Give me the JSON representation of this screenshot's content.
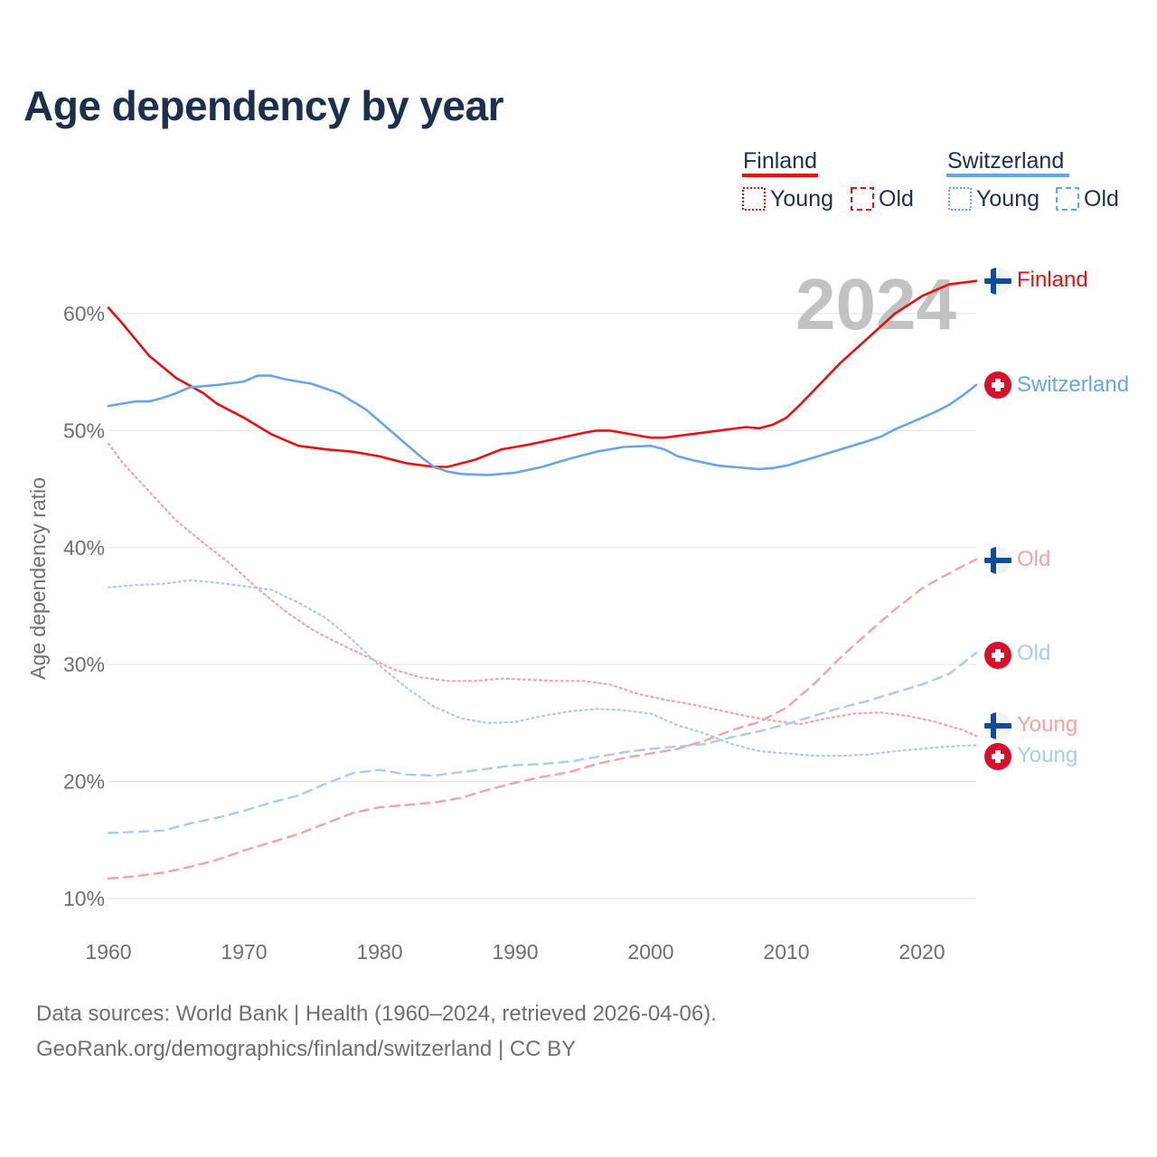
{
  "title": "Age dependency by year",
  "year_label": "2024",
  "source_line1": "Data sources: World Bank | Health (1960–2024, retrieved 2026-04-06).",
  "source_line2": "GeoRank.org/demographics/finland/switzerland | CC BY",
  "legend": {
    "finland": {
      "name": "Finland",
      "young": "Young",
      "old": "Old",
      "color": "#e8100f",
      "light_color": "#f4a3a3"
    },
    "switzerland": {
      "name": "Switzerland",
      "young": "Young",
      "old": "Old",
      "color": "#66a6e8",
      "light_color": "#a9cbee"
    }
  },
  "chart_data": {
    "type": "line",
    "title": "Age dependency by year",
    "xlabel": "",
    "ylabel": "Age dependency ratio",
    "xlim": [
      1960,
      2024
    ],
    "ylim": [
      10,
      60
    ],
    "x_ticks": [
      1960,
      1970,
      1980,
      1990,
      2000,
      2010,
      2020
    ],
    "y_ticks": [
      "10%",
      "20%",
      "30%",
      "40%",
      "50%",
      "60%"
    ],
    "grid": true,
    "series": [
      {
        "name": "Finland",
        "country": "finland",
        "kind": "total",
        "end_label": "Finland",
        "points": [
          [
            1960,
            60.5
          ],
          [
            1961,
            59.2
          ],
          [
            1963,
            56.4
          ],
          [
            1965,
            54.5
          ],
          [
            1967,
            53.2
          ],
          [
            1968,
            52.3
          ],
          [
            1970,
            51.1
          ],
          [
            1972,
            49.7
          ],
          [
            1974,
            48.7
          ],
          [
            1976,
            48.4
          ],
          [
            1978,
            48.2
          ],
          [
            1980,
            47.8
          ],
          [
            1982,
            47.2
          ],
          [
            1984,
            46.9
          ],
          [
            1985,
            46.9
          ],
          [
            1987,
            47.5
          ],
          [
            1989,
            48.4
          ],
          [
            1991,
            48.8
          ],
          [
            1993,
            49.3
          ],
          [
            1995,
            49.8
          ],
          [
            1996,
            50.0
          ],
          [
            1997,
            50.0
          ],
          [
            1999,
            49.6
          ],
          [
            2000,
            49.4
          ],
          [
            2001,
            49.4
          ],
          [
            2003,
            49.7
          ],
          [
            2005,
            50.0
          ],
          [
            2007,
            50.3
          ],
          [
            2008,
            50.2
          ],
          [
            2009,
            50.5
          ],
          [
            2010,
            51.1
          ],
          [
            2011,
            52.2
          ],
          [
            2012,
            53.4
          ],
          [
            2014,
            55.8
          ],
          [
            2016,
            57.9
          ],
          [
            2018,
            60.0
          ],
          [
            2020,
            61.5
          ],
          [
            2022,
            62.5
          ],
          [
            2024,
            62.8
          ]
        ]
      },
      {
        "name": "Switzerland",
        "country": "switzerland",
        "kind": "total",
        "end_label": "Switzerland",
        "points": [
          [
            1960,
            52.1
          ],
          [
            1961,
            52.3
          ],
          [
            1962,
            52.5
          ],
          [
            1963,
            52.5
          ],
          [
            1964,
            52.8
          ],
          [
            1965,
            53.2
          ],
          [
            1966,
            53.7
          ],
          [
            1968,
            53.9
          ],
          [
            1970,
            54.2
          ],
          [
            1971,
            54.7
          ],
          [
            1972,
            54.7
          ],
          [
            1973,
            54.4
          ],
          [
            1975,
            54.0
          ],
          [
            1977,
            53.2
          ],
          [
            1979,
            51.8
          ],
          [
            1981,
            49.8
          ],
          [
            1983,
            47.8
          ],
          [
            1984,
            46.9
          ],
          [
            1985,
            46.5
          ],
          [
            1986,
            46.3
          ],
          [
            1988,
            46.2
          ],
          [
            1990,
            46.4
          ],
          [
            1992,
            46.9
          ],
          [
            1994,
            47.6
          ],
          [
            1996,
            48.2
          ],
          [
            1998,
            48.6
          ],
          [
            2000,
            48.7
          ],
          [
            2001,
            48.4
          ],
          [
            2002,
            47.8
          ],
          [
            2003,
            47.5
          ],
          [
            2005,
            47.0
          ],
          [
            2007,
            46.8
          ],
          [
            2008,
            46.7
          ],
          [
            2009,
            46.8
          ],
          [
            2010,
            47.0
          ],
          [
            2012,
            47.7
          ],
          [
            2014,
            48.4
          ],
          [
            2016,
            49.1
          ],
          [
            2017,
            49.5
          ],
          [
            2018,
            50.1
          ],
          [
            2020,
            51.1
          ],
          [
            2021,
            51.6
          ],
          [
            2022,
            52.2
          ],
          [
            2023,
            53.0
          ],
          [
            2024,
            53.9
          ]
        ]
      },
      {
        "name": "Finland Young",
        "country": "finland",
        "kind": "young",
        "end_label": "Young",
        "points": [
          [
            1960,
            48.9
          ],
          [
            1961,
            47.3
          ],
          [
            1963,
            44.8
          ],
          [
            1965,
            42.3
          ],
          [
            1967,
            40.4
          ],
          [
            1969,
            38.6
          ],
          [
            1971,
            36.5
          ],
          [
            1973,
            34.6
          ],
          [
            1975,
            33.0
          ],
          [
            1977,
            31.8
          ],
          [
            1979,
            30.7
          ],
          [
            1981,
            29.6
          ],
          [
            1983,
            28.9
          ],
          [
            1985,
            28.6
          ],
          [
            1987,
            28.6
          ],
          [
            1989,
            28.8
          ],
          [
            1991,
            28.7
          ],
          [
            1993,
            28.6
          ],
          [
            1995,
            28.6
          ],
          [
            1997,
            28.3
          ],
          [
            1999,
            27.5
          ],
          [
            2001,
            27.0
          ],
          [
            2003,
            26.6
          ],
          [
            2005,
            26.1
          ],
          [
            2007,
            25.6
          ],
          [
            2009,
            25.2
          ],
          [
            2011,
            24.9
          ],
          [
            2013,
            25.4
          ],
          [
            2015,
            25.8
          ],
          [
            2017,
            25.9
          ],
          [
            2019,
            25.6
          ],
          [
            2021,
            25.1
          ],
          [
            2023,
            24.4
          ],
          [
            2024,
            23.9
          ]
        ]
      },
      {
        "name": "Finland Old",
        "country": "finland",
        "kind": "old",
        "end_label": "Old",
        "points": [
          [
            1960,
            11.7
          ],
          [
            1962,
            11.9
          ],
          [
            1964,
            12.2
          ],
          [
            1966,
            12.7
          ],
          [
            1968,
            13.3
          ],
          [
            1970,
            14.1
          ],
          [
            1972,
            14.8
          ],
          [
            1974,
            15.5
          ],
          [
            1976,
            16.4
          ],
          [
            1978,
            17.3
          ],
          [
            1980,
            17.8
          ],
          [
            1982,
            18.0
          ],
          [
            1984,
            18.2
          ],
          [
            1986,
            18.6
          ],
          [
            1988,
            19.3
          ],
          [
            1990,
            19.9
          ],
          [
            1992,
            20.4
          ],
          [
            1994,
            20.8
          ],
          [
            1996,
            21.5
          ],
          [
            1998,
            22.0
          ],
          [
            2000,
            22.4
          ],
          [
            2002,
            22.8
          ],
          [
            2004,
            23.5
          ],
          [
            2006,
            24.4
          ],
          [
            2008,
            25.1
          ],
          [
            2010,
            26.3
          ],
          [
            2012,
            28.3
          ],
          [
            2014,
            30.6
          ],
          [
            2016,
            32.7
          ],
          [
            2018,
            34.7
          ],
          [
            2020,
            36.5
          ],
          [
            2022,
            37.8
          ],
          [
            2024,
            39.0
          ]
        ]
      },
      {
        "name": "Switzerland Young",
        "country": "switzerland",
        "kind": "young",
        "end_label": "Young",
        "points": [
          [
            1960,
            36.6
          ],
          [
            1962,
            36.8
          ],
          [
            1964,
            36.9
          ],
          [
            1966,
            37.2
          ],
          [
            1968,
            37.0
          ],
          [
            1970,
            36.7
          ],
          [
            1972,
            36.4
          ],
          [
            1974,
            35.3
          ],
          [
            1976,
            34.0
          ],
          [
            1978,
            32.1
          ],
          [
            1980,
            29.9
          ],
          [
            1982,
            28.0
          ],
          [
            1984,
            26.4
          ],
          [
            1986,
            25.4
          ],
          [
            1988,
            25.0
          ],
          [
            1990,
            25.1
          ],
          [
            1992,
            25.6
          ],
          [
            1994,
            26.0
          ],
          [
            1996,
            26.2
          ],
          [
            1998,
            26.1
          ],
          [
            2000,
            25.8
          ],
          [
            2002,
            24.8
          ],
          [
            2004,
            24.1
          ],
          [
            2006,
            23.2
          ],
          [
            2008,
            22.6
          ],
          [
            2010,
            22.4
          ],
          [
            2012,
            22.2
          ],
          [
            2014,
            22.2
          ],
          [
            2016,
            22.3
          ],
          [
            2018,
            22.6
          ],
          [
            2020,
            22.8
          ],
          [
            2022,
            23.0
          ],
          [
            2024,
            23.1
          ]
        ]
      },
      {
        "name": "Switzerland Old",
        "country": "switzerland",
        "kind": "old",
        "end_label": "Old",
        "points": [
          [
            1960,
            15.6
          ],
          [
            1962,
            15.7
          ],
          [
            1964,
            15.8
          ],
          [
            1966,
            16.4
          ],
          [
            1968,
            16.9
          ],
          [
            1970,
            17.5
          ],
          [
            1972,
            18.2
          ],
          [
            1974,
            18.8
          ],
          [
            1976,
            19.8
          ],
          [
            1978,
            20.7
          ],
          [
            1980,
            21.0
          ],
          [
            1982,
            20.6
          ],
          [
            1984,
            20.5
          ],
          [
            1986,
            20.8
          ],
          [
            1988,
            21.1
          ],
          [
            1990,
            21.4
          ],
          [
            1992,
            21.5
          ],
          [
            1994,
            21.7
          ],
          [
            1996,
            22.1
          ],
          [
            1998,
            22.5
          ],
          [
            2000,
            22.8
          ],
          [
            2002,
            23.0
          ],
          [
            2004,
            23.2
          ],
          [
            2006,
            23.8
          ],
          [
            2008,
            24.3
          ],
          [
            2010,
            24.9
          ],
          [
            2012,
            25.6
          ],
          [
            2014,
            26.3
          ],
          [
            2016,
            26.9
          ],
          [
            2018,
            27.6
          ],
          [
            2020,
            28.3
          ],
          [
            2022,
            29.2
          ],
          [
            2024,
            31.0
          ]
        ]
      }
    ]
  }
}
